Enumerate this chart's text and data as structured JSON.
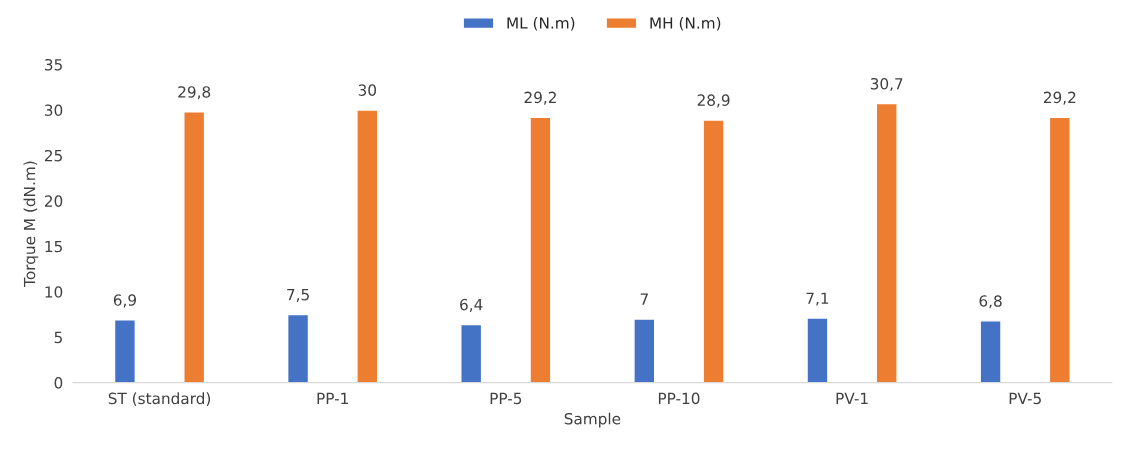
{
  "chart_data": {
    "type": "bar",
    "xlabel": "Sample",
    "ylabel": "Torque M (dN.m)",
    "categories": [
      "ST (standard)",
      "PP-1",
      "PP-5",
      "PP-10",
      "PV-1",
      "PV-5"
    ],
    "series": [
      {
        "name": "ML (N.m)",
        "color": "#4472c4",
        "values": [
          6.9,
          7.5,
          6.4,
          7,
          7.1,
          6.8
        ],
        "value_labels": [
          "6,9",
          "7,5",
          "6,4",
          "7",
          "7,1",
          "6,8"
        ]
      },
      {
        "name": "MH (N.m)",
        "color": "#ed7d31",
        "values": [
          29.8,
          30,
          29.2,
          28.9,
          30.7,
          29.2
        ],
        "value_labels": [
          "29,8",
          "30",
          "29,2",
          "28,9",
          "30,7",
          "29,2"
        ]
      }
    ],
    "ylim": [
      0,
      35
    ],
    "yticks": [
      0,
      5,
      10,
      15,
      20,
      25,
      30,
      35
    ],
    "grid": false,
    "legend": "top"
  }
}
